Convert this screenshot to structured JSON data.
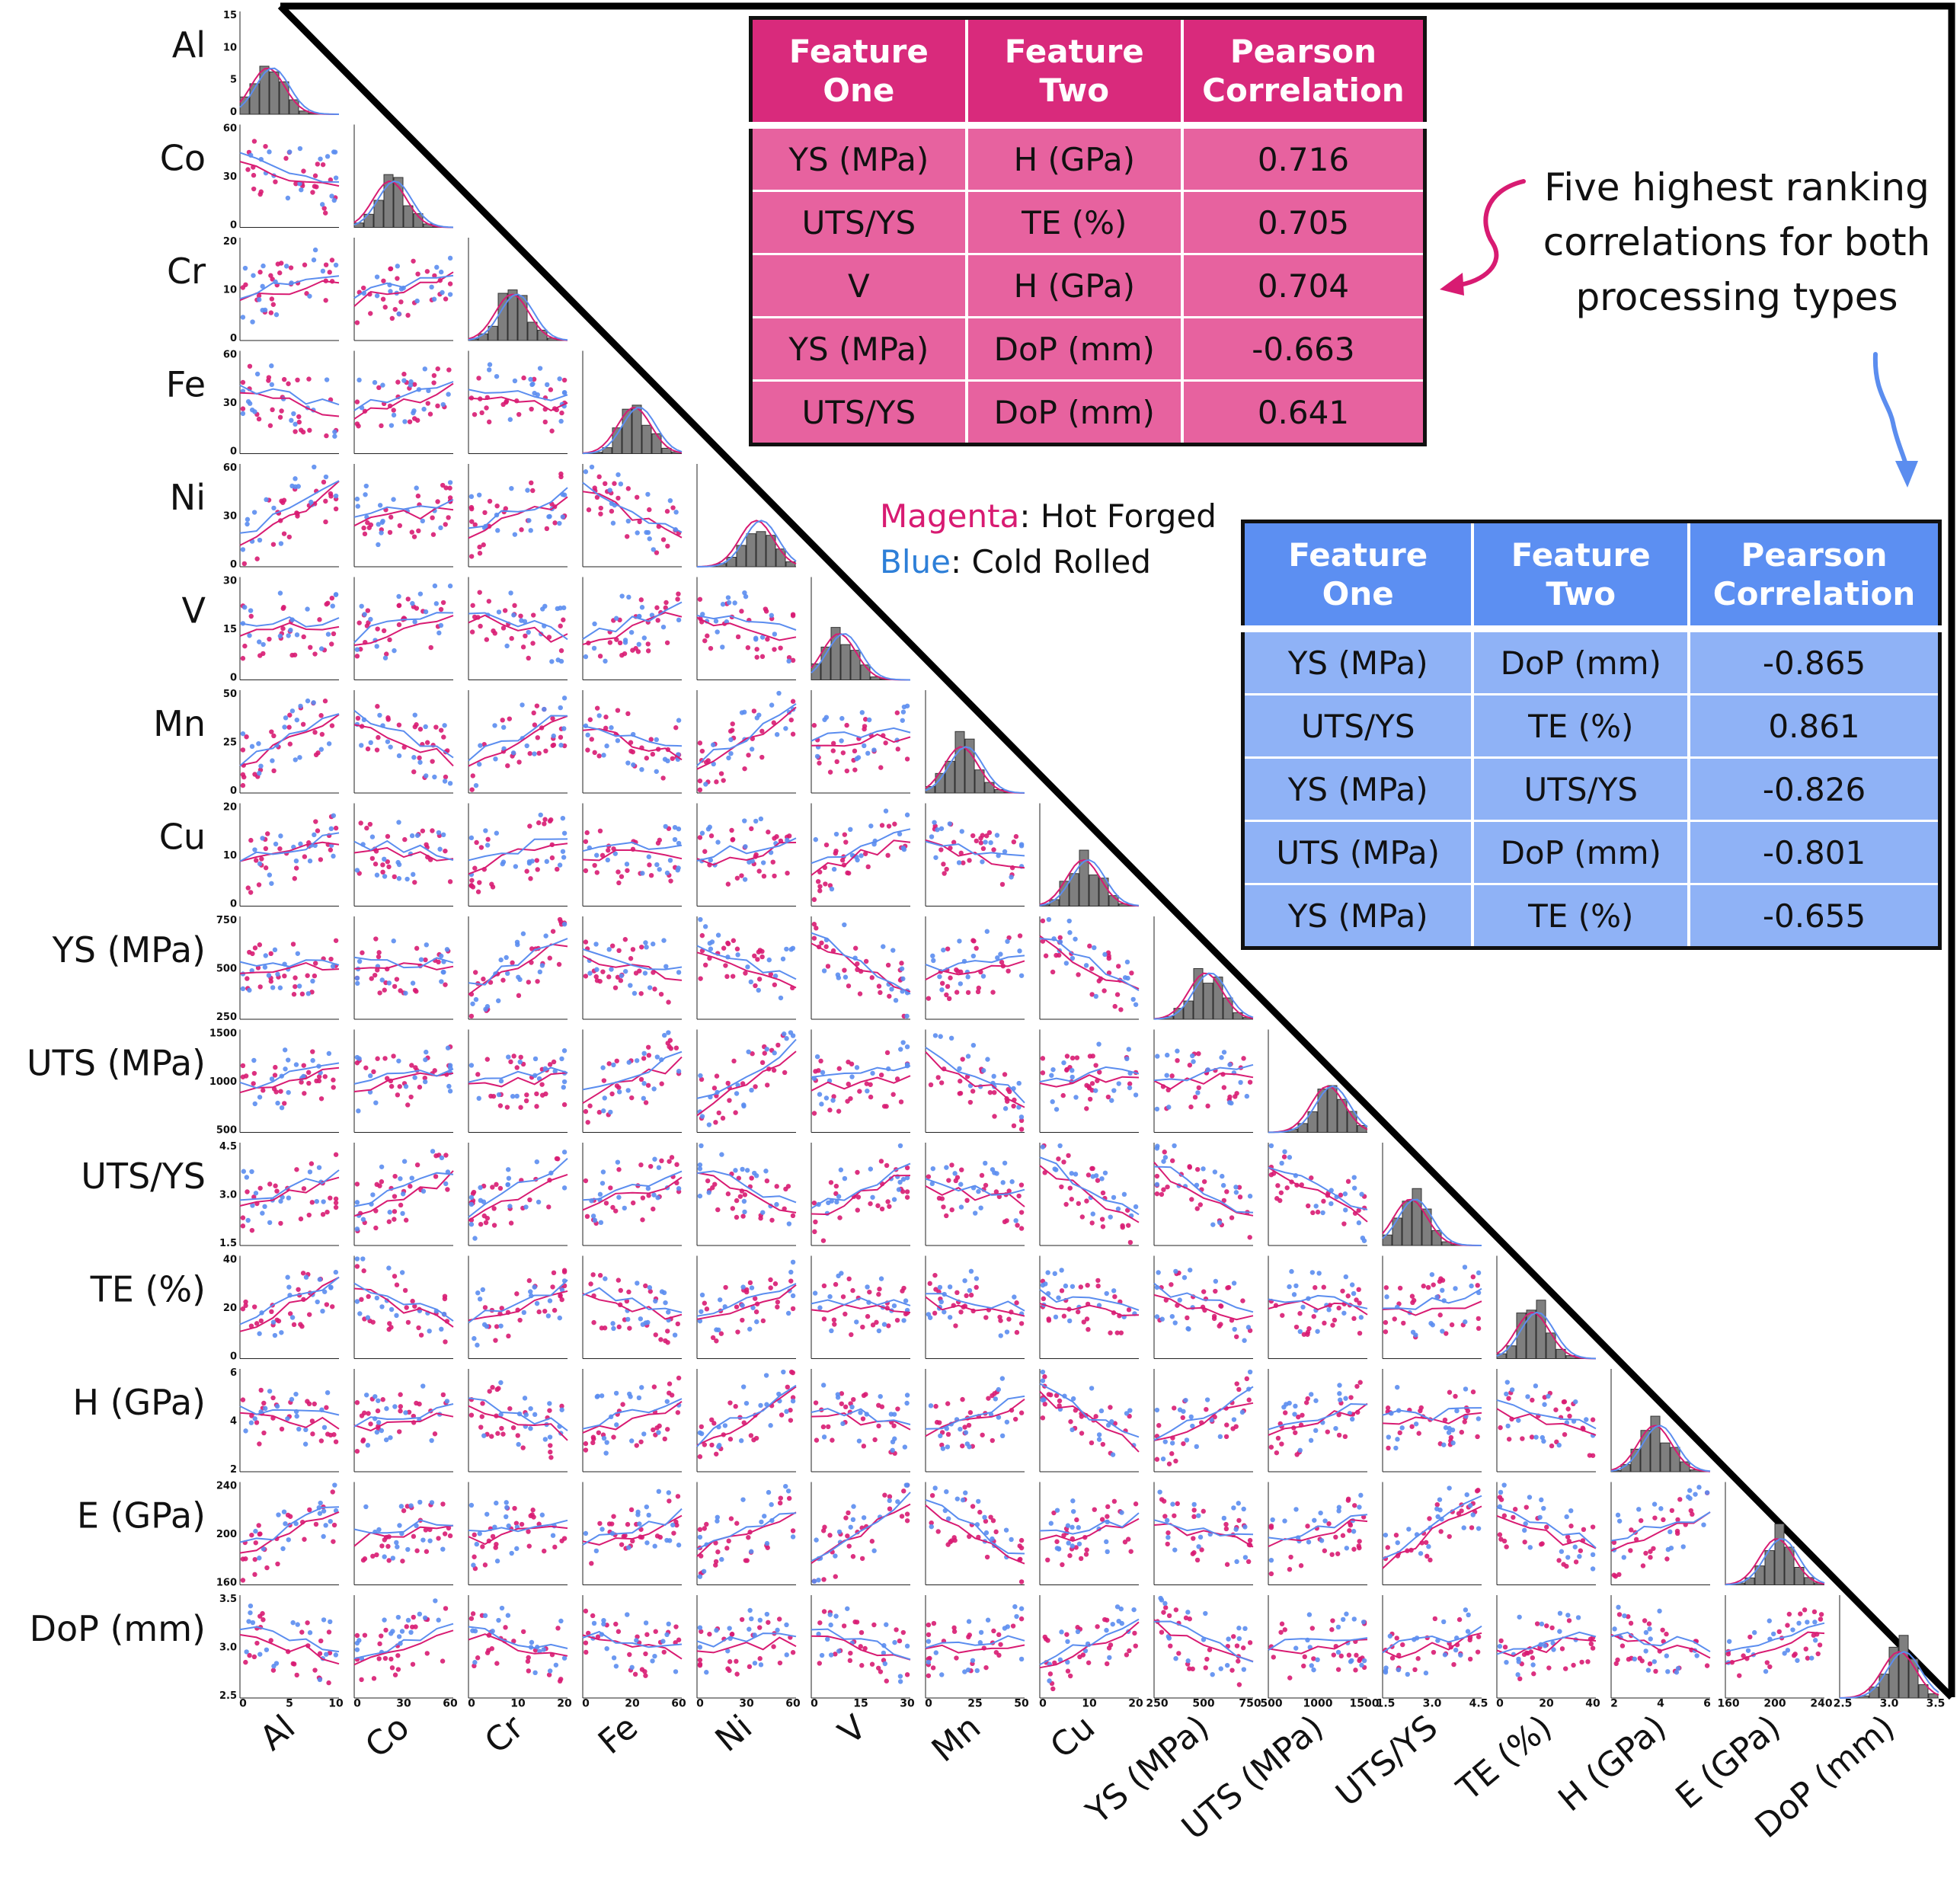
{
  "chart_data": {
    "type": "scatter",
    "kind": "pairplot-lower-triangle",
    "variables": [
      "Al",
      "Co",
      "Cr",
      "Fe",
      "Ni",
      "V",
      "Mn",
      "Cu",
      "YS (MPa)",
      "UTS (MPa)",
      "UTS/YS",
      "TE (%)",
      "H (GPa)",
      "E (GPa)",
      "DoP (mm)"
    ],
    "ranges": {
      "Al": [
        0,
        15
      ],
      "Co": [
        0,
        80
      ],
      "Cr": [
        0,
        25
      ],
      "Fe": [
        0,
        75
      ],
      "Ni": [
        0,
        70
      ],
      "V": [
        0,
        30
      ],
      "Mn": [
        0,
        60
      ],
      "Cu": [
        0,
        25
      ],
      "YS (MPa)": [
        150,
        800
      ],
      "UTS (MPa)": [
        300,
        1600
      ],
      "UTS/YS": [
        1.0,
        4.6
      ],
      "TE (%)": [
        0,
        55
      ],
      "H (GPa)": [
        1.2,
        6.2
      ],
      "E (GPa)": [
        150,
        245
      ],
      "DoP (mm)": [
        2.1,
        3.5
      ]
    },
    "yticks": {
      "Al": [
        "15",
        "10",
        "5",
        "0"
      ],
      "Co": [
        "60",
        "30",
        "0"
      ],
      "Cr": [
        "20",
        "10",
        "0"
      ],
      "Fe": [
        "60",
        "30",
        "0"
      ],
      "Ni": [
        "60",
        "30",
        "0"
      ],
      "V": [
        "30",
        "15",
        "0"
      ],
      "Mn": [
        "50",
        "25",
        "0"
      ],
      "Cu": [
        "20",
        "10",
        "0"
      ],
      "YS (MPa)": [
        "750",
        "500",
        "250"
      ],
      "UTS (MPa)": [
        "1500",
        "1000",
        "500"
      ],
      "UTS/YS": [
        "4.5",
        "3.0",
        "1.5"
      ],
      "TE (%)": [
        "40",
        "20",
        "0"
      ],
      "H (GPa)": [
        "6",
        "4",
        "2"
      ],
      "E (GPa)": [
        "240",
        "200",
        "160"
      ],
      "DoP (mm)": [
        "3.5",
        "3.0",
        "2.5"
      ]
    },
    "xticks": {
      "Al": [
        "0",
        "5",
        "10"
      ],
      "Co": [
        "0",
        "30",
        "60"
      ],
      "Cr": [
        "0",
        "10",
        "20"
      ],
      "Fe": [
        "0",
        "20",
        "60"
      ],
      "Ni": [
        "0",
        "30",
        "60"
      ],
      "V": [
        "0",
        "15",
        "30"
      ],
      "Mn": [
        "0",
        "25",
        "50"
      ],
      "Cu": [
        "0",
        "10",
        "20"
      ],
      "YS (MPa)": [
        "250",
        "500",
        "750"
      ],
      "UTS (MPa)": [
        "500",
        "1000",
        "1500"
      ],
      "UTS/YS": [
        "1.5",
        "3.0",
        "4.5"
      ],
      "TE (%)": [
        "0",
        "20",
        "40"
      ],
      "H (GPa)": [
        "2",
        "4",
        "6"
      ],
      "E (GPa)": [
        "160",
        "200",
        "240"
      ],
      "DoP (mm)": [
        "2.5",
        "3.0",
        "3.5"
      ]
    },
    "series": [
      {
        "name": "Hot Forged",
        "color": "#d81b72"
      },
      {
        "name": "Cold Rolled",
        "color": "#5b8def"
      }
    ],
    "histogram_color": "#7f7f7f"
  },
  "legend": {
    "magenta_word": "Magenta",
    "magenta_rest": ": Hot Forged",
    "blue_word": "Blue",
    "blue_rest": ": Cold Rolled"
  },
  "annotation": {
    "line1": "Five highest ranking",
    "line2": "correlations for both",
    "line3": "processing types"
  },
  "tables": {
    "headers": [
      "Feature One",
      "Feature Two",
      "Pearson Correlation"
    ],
    "hot_forged": [
      [
        "YS (MPa)",
        "H (GPa)",
        "0.716"
      ],
      [
        "UTS/YS",
        "TE (%)",
        "0.705"
      ],
      [
        "V",
        "H (GPa)",
        "0.704"
      ],
      [
        "YS (MPa)",
        "DoP (mm)",
        "-0.663"
      ],
      [
        "UTS/YS",
        "DoP (mm)",
        "0.641"
      ]
    ],
    "cold_rolled": [
      [
        "YS (MPa)",
        "DoP (mm)",
        "-0.865"
      ],
      [
        "UTS/YS",
        "TE (%)",
        "0.861"
      ],
      [
        "YS (MPa)",
        "UTS/YS",
        "-0.826"
      ],
      [
        "UTS (MPa)",
        "DoP (mm)",
        "-0.801"
      ],
      [
        "YS (MPa)",
        "TE (%)",
        "-0.655"
      ]
    ]
  },
  "colors": {
    "hot_forged": "#d81b72",
    "cold_rolled": "#5b8def",
    "hf_header": "#d92a7c",
    "hf_cell": "#e7629f",
    "cr_header": "#5c8ff2",
    "cr_cell": "#8fb2f6"
  }
}
